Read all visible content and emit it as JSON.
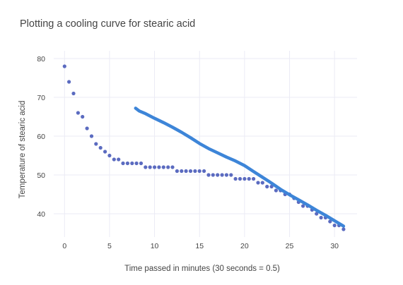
{
  "chart_data": {
    "type": "scatter",
    "title": "Plotting a cooling curve for stearic acid",
    "xlabel": "Time passed in minutes (30 seconds = 0.5)",
    "ylabel": "Temperature of stearic acid",
    "xlim": [
      -1.2,
      32.5
    ],
    "ylim": [
      34,
      82
    ],
    "xticks": [
      0,
      5,
      10,
      15,
      20,
      25,
      30
    ],
    "yticks": [
      40,
      50,
      60,
      70,
      80
    ],
    "grid": true,
    "colors": {
      "points": "#5b6bc0",
      "line": "#3d85d8",
      "grid": "#ebebf5"
    },
    "series": [
      {
        "mode": "markers",
        "x": [
          0,
          0.5,
          1,
          1.5,
          2,
          2.5,
          3,
          3.5,
          4,
          4.5,
          5,
          5.5,
          6,
          6.5,
          7,
          7.5,
          8,
          8.5,
          9,
          9.5,
          10,
          10.5,
          11,
          11.5,
          12,
          12.5,
          13,
          13.5,
          14,
          14.5,
          15,
          15.5,
          16,
          16.5,
          17,
          17.5,
          18,
          18.5,
          19,
          19.5,
          20,
          20.5,
          21,
          21.5,
          22,
          22.5,
          23,
          23.5,
          24,
          24.5,
          25,
          25.5,
          26,
          26.5,
          27,
          27.5,
          28,
          28.5,
          29,
          29.5,
          30,
          30.5,
          31
        ],
        "y": [
          78,
          74,
          71,
          66,
          65,
          62,
          60,
          58,
          57,
          56,
          55,
          54,
          54,
          53,
          53,
          53,
          53,
          53,
          52,
          52,
          52,
          52,
          52,
          52,
          52,
          51,
          51,
          51,
          51,
          51,
          51,
          51,
          50,
          50,
          50,
          50,
          50,
          50,
          49,
          49,
          49,
          49,
          49,
          48,
          48,
          47,
          47,
          46,
          46,
          45,
          45,
          44,
          43,
          42,
          42,
          41,
          40,
          39,
          39,
          38,
          37,
          37,
          36
        ]
      },
      {
        "mode": "lines",
        "x": [
          7.9,
          8.3,
          9,
          10,
          11,
          12,
          13,
          14,
          15,
          16,
          17,
          18,
          19,
          20,
          21,
          22,
          23,
          24,
          25,
          26,
          27,
          28,
          29,
          30,
          31
        ],
        "y": [
          67.2,
          66.5,
          65.8,
          64.6,
          63.5,
          62.3,
          61.0,
          59.6,
          58.1,
          56.8,
          55.7,
          54.6,
          53.6,
          52.4,
          50.9,
          49.4,
          47.9,
          46.3,
          44.9,
          43.6,
          42.3,
          40.9,
          39.6,
          38.2,
          36.8
        ]
      }
    ]
  }
}
